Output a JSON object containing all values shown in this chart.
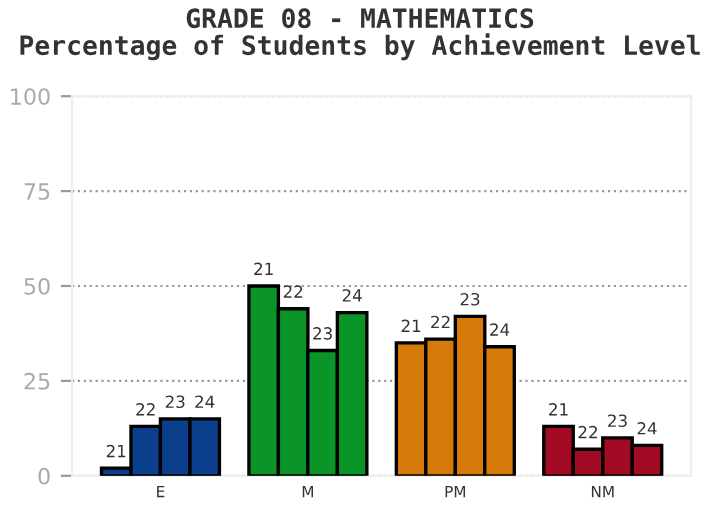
{
  "chart_data": {
    "type": "bar",
    "title": "GRADE 08 - MATHEMATICS\nPercentage of Students by Achievement Level",
    "categories": [
      "E",
      "M",
      "PM",
      "NM"
    ],
    "series": [
      {
        "name": "21",
        "colors": [
          "#0b3f8c",
          "#0b9428",
          "#d67b09",
          "#a30a23"
        ],
        "values": [
          2,
          50,
          35,
          13
        ]
      },
      {
        "name": "22",
        "colors": [
          "#0b3f8c",
          "#0b9428",
          "#d67b09",
          "#a30a23"
        ],
        "values": [
          13,
          44,
          36,
          7
        ]
      },
      {
        "name": "23",
        "colors": [
          "#0b3f8c",
          "#0b9428",
          "#d67b09",
          "#a30a23"
        ],
        "values": [
          15,
          33,
          42,
          10
        ]
      },
      {
        "name": "24",
        "colors": [
          "#0b3f8c",
          "#0b9428",
          "#d67b09",
          "#a30a23"
        ],
        "values": [
          15,
          43,
          34,
          8
        ]
      }
    ],
    "ylim": [
      0,
      100
    ],
    "yticks": [
      0,
      25,
      50,
      75,
      100
    ],
    "grid": "y",
    "legend": false
  }
}
